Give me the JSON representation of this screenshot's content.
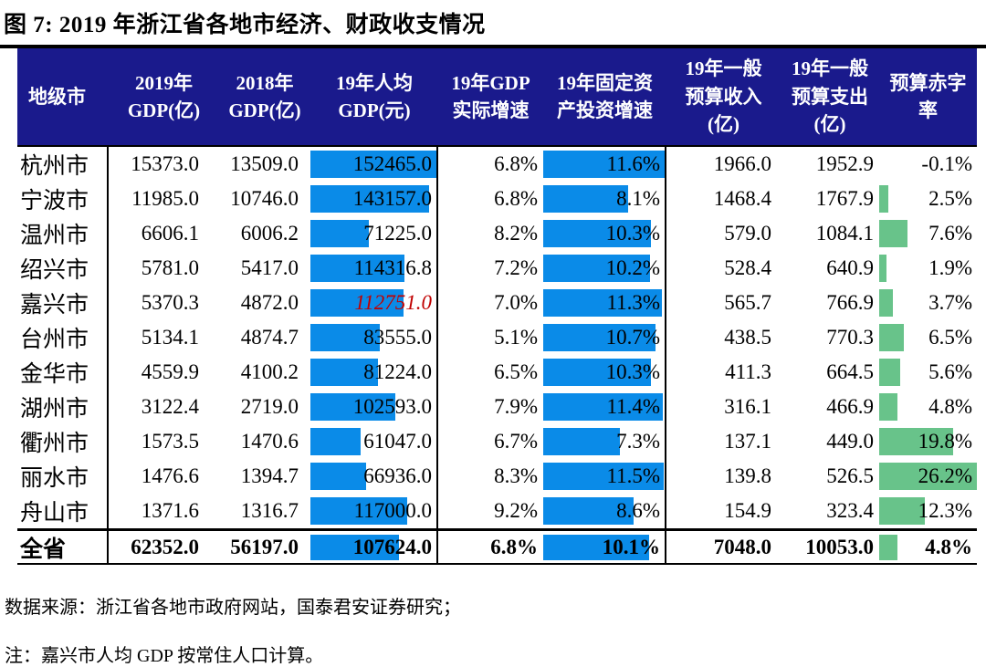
{
  "colors": {
    "header_bg": "#1A1A8C",
    "bar_blue": "#0A8BE8",
    "bar_green": "#68C38A",
    "highlight_red": "#C00000"
  },
  "chart_data": {
    "type": "table",
    "title": "图 7:  2019 年浙江省各地市经济、财政收支情况",
    "legend_position": "none",
    "grid": "partial-rules",
    "bar_scales": {
      "pcgdp_max": 152465.0,
      "fai_max": 11.6,
      "deficit_max": 26.2
    },
    "columns": [
      {
        "key": "city",
        "label": "地级市"
      },
      {
        "key": "gdp2019",
        "label": "2019年\nGDP(亿)"
      },
      {
        "key": "gdp2018",
        "label": "2018年\nGDP(亿)"
      },
      {
        "key": "pcgdp",
        "label": "19年人均\nGDP(元)"
      },
      {
        "key": "gdp_growth",
        "label": "19年GDP\n实际增速"
      },
      {
        "key": "fai_growth",
        "label": "19年固定资\n产投资增速"
      },
      {
        "key": "revenue",
        "label": "19年一般\n预算收入\n(亿)"
      },
      {
        "key": "expenditure",
        "label": "19年一般\n预算支出\n(亿)"
      },
      {
        "key": "deficit",
        "label": "预算赤字\n率"
      }
    ],
    "rows": [
      {
        "city": "杭州市",
        "gdp2019": "15373.0",
        "gdp2018": "13509.0",
        "pcgdp": "152465.0",
        "pcgdp_value": 152465.0,
        "gdp_growth": "6.8%",
        "fai_growth": "11.6%",
        "fai_value": 11.6,
        "revenue": "1966.0",
        "expenditure": "1952.9",
        "deficit": "-0.1%",
        "deficit_value": -0.1
      },
      {
        "city": "宁波市",
        "gdp2019": "11985.0",
        "gdp2018": "10746.0",
        "pcgdp": "143157.0",
        "pcgdp_value": 143157.0,
        "gdp_growth": "6.8%",
        "fai_growth": "8.1%",
        "fai_value": 8.1,
        "revenue": "1468.4",
        "expenditure": "1767.9",
        "deficit": "2.5%",
        "deficit_value": 2.5
      },
      {
        "city": "温州市",
        "gdp2019": "6606.1",
        "gdp2018": "6006.2",
        "pcgdp": "71225.0",
        "pcgdp_value": 71225.0,
        "gdp_growth": "8.2%",
        "fai_growth": "10.3%",
        "fai_value": 10.3,
        "revenue": "579.0",
        "expenditure": "1084.1",
        "deficit": "7.6%",
        "deficit_value": 7.6
      },
      {
        "city": "绍兴市",
        "gdp2019": "5781.0",
        "gdp2018": "5417.0",
        "pcgdp": "114316.8",
        "pcgdp_value": 114316.8,
        "gdp_growth": "7.2%",
        "fai_growth": "10.2%",
        "fai_value": 10.2,
        "revenue": "528.4",
        "expenditure": "640.9",
        "deficit": "1.9%",
        "deficit_value": 1.9
      },
      {
        "city": "嘉兴市",
        "gdp2019": "5370.3",
        "gdp2018": "4872.0",
        "pcgdp": "112751.0",
        "pcgdp_value": 112751.0,
        "pcgdp_highlight": true,
        "gdp_growth": "7.0%",
        "fai_growth": "11.3%",
        "fai_value": 11.3,
        "revenue": "565.7",
        "expenditure": "766.9",
        "deficit": "3.7%",
        "deficit_value": 3.7
      },
      {
        "city": "台州市",
        "gdp2019": "5134.1",
        "gdp2018": "4874.7",
        "pcgdp": "83555.0",
        "pcgdp_value": 83555.0,
        "gdp_growth": "5.1%",
        "fai_growth": "10.7%",
        "fai_value": 10.7,
        "revenue": "438.5",
        "expenditure": "770.3",
        "deficit": "6.5%",
        "deficit_value": 6.5
      },
      {
        "city": "金华市",
        "gdp2019": "4559.9",
        "gdp2018": "4100.2",
        "pcgdp": "81224.0",
        "pcgdp_value": 81224.0,
        "gdp_growth": "6.5%",
        "fai_growth": "10.3%",
        "fai_value": 10.3,
        "revenue": "411.3",
        "expenditure": "664.5",
        "deficit": "5.6%",
        "deficit_value": 5.6
      },
      {
        "city": "湖州市",
        "gdp2019": "3122.4",
        "gdp2018": "2719.0",
        "pcgdp": "102593.0",
        "pcgdp_value": 102593.0,
        "gdp_growth": "7.9%",
        "fai_growth": "11.4%",
        "fai_value": 11.4,
        "revenue": "316.1",
        "expenditure": "466.9",
        "deficit": "4.8%",
        "deficit_value": 4.8
      },
      {
        "city": "衢州市",
        "gdp2019": "1573.5",
        "gdp2018": "1470.6",
        "pcgdp": "61047.0",
        "pcgdp_value": 61047.0,
        "gdp_growth": "6.7%",
        "fai_growth": "7.3%",
        "fai_value": 7.3,
        "revenue": "137.1",
        "expenditure": "449.0",
        "deficit": "19.8%",
        "deficit_value": 19.8
      },
      {
        "city": "丽水市",
        "gdp2019": "1476.6",
        "gdp2018": "1394.7",
        "pcgdp": "66936.0",
        "pcgdp_value": 66936.0,
        "gdp_growth": "8.3%",
        "fai_growth": "11.5%",
        "fai_value": 11.5,
        "revenue": "139.8",
        "expenditure": "526.5",
        "deficit": "26.2%",
        "deficit_value": 26.2
      },
      {
        "city": "舟山市",
        "gdp2019": "1371.6",
        "gdp2018": "1316.7",
        "pcgdp": "117000.0",
        "pcgdp_value": 117000.0,
        "gdp_growth": "9.2%",
        "fai_growth": "8.6%",
        "fai_value": 8.6,
        "revenue": "154.9",
        "expenditure": "323.4",
        "deficit": "12.3%",
        "deficit_value": 12.3
      }
    ],
    "total": {
      "city": "全省",
      "gdp2019": "62352.0",
      "gdp2018": "56197.0",
      "pcgdp": "107624.0",
      "pcgdp_value": 107624.0,
      "gdp_growth": "6.8%",
      "fai_growth": "10.1%",
      "fai_value": 10.1,
      "revenue": "7048.0",
      "expenditure": "10053.0",
      "deficit": "4.8%",
      "deficit_value": 4.8
    }
  },
  "footnotes": {
    "source": "数据来源：浙江省各地市政府网站，国泰君安证券研究；",
    "note": "注：嘉兴市人均 GDP 按常住人口计算。"
  }
}
